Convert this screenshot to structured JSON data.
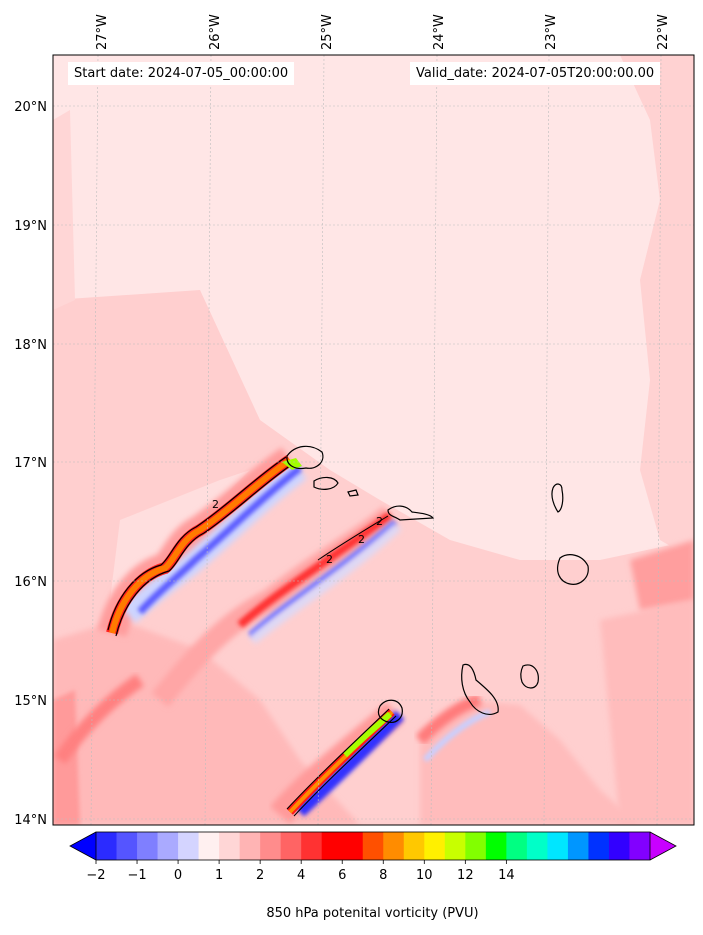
{
  "header": {
    "start_date": "Start date: 2024-07-05_00:00:00",
    "valid_date": "Valid_date: 2024-07-05T20:00:00.00"
  },
  "map": {
    "lon_ticks": [
      "27°W",
      "26°W",
      "25°W",
      "24°W",
      "23°W",
      "22°W"
    ],
    "lat_ticks": [
      "20°N",
      "19°N",
      "18°N",
      "17°N",
      "16°N",
      "15°N",
      "14°N"
    ],
    "contour_label": "2"
  },
  "colorbar": {
    "label": "850 hPa potenital vorticity (PVU)",
    "ticks": [
      "−2",
      "−1",
      "0",
      "1",
      "2",
      "4",
      "6",
      "8",
      "10",
      "12",
      "14"
    ],
    "colors": [
      "#0000ff",
      "#2b2bff",
      "#5555ff",
      "#7f7fff",
      "#aaaaff",
      "#d4d4ff",
      "#fff0f0",
      "#ffd6d6",
      "#ffb4b4",
      "#ff8c8c",
      "#ff6464",
      "#ff3232",
      "#ff0000",
      "#ff0000",
      "#ff5000",
      "#ff8c00",
      "#ffc800",
      "#fff000",
      "#c8ff00",
      "#82ff00",
      "#00ff00",
      "#00ff82",
      "#00ffc8",
      "#00e6ff",
      "#0096ff",
      "#0032ff",
      "#3200ff",
      "#8200ff",
      "#c800ff"
    ]
  }
}
